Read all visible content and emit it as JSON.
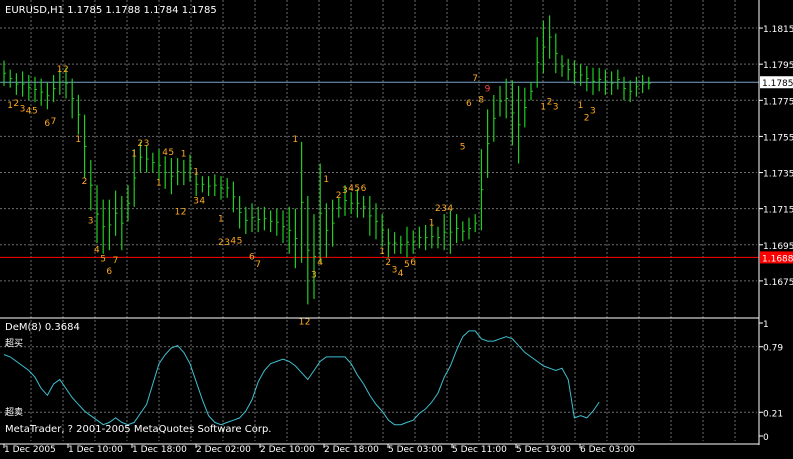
{
  "window": {
    "symbol_header": "EURUSD,H1  1.1785 1.1788 1.1784 1.1785",
    "background": "#000000",
    "grid_color": "#6b6b6b",
    "bull_color": "#22cc22",
    "label_color": "#ffaa22",
    "current_price_line_color": "#7aa2c8",
    "support_line_color": "#ff0000"
  },
  "price_chart": {
    "axis_ticks": [
      "1.1815",
      "1.1795",
      "1.1775",
      "1.1755",
      "1.1735",
      "1.1715",
      "1.1695",
      "1.1675"
    ],
    "current_price_label": "1.1785",
    "support_price_label": "1.1688",
    "ylim": [
      1.166,
      1.1825
    ]
  },
  "indicator": {
    "title": "DeM(8) 0.3684",
    "overbought_label": "超买",
    "oversold_label": "超卖",
    "axis_ticks": [
      "1",
      "0.79",
      "0.21",
      "0"
    ],
    "line_color": "#3fbfcf",
    "copyright": "MetaTrader, ? 2001-2005 MetaQuotes Software Corp."
  },
  "time_axis": {
    "labels": [
      "1 Dec 2005",
      "1 Dec 10:00",
      "1 Dec 18:00",
      "2 Dec 02:00",
      "2 Dec 10:00",
      "2 Dec 18:00",
      "5 Dec 03:00",
      "5 Dec 11:00",
      "5 Dec 19:00",
      "6 Dec 03:00"
    ]
  },
  "chart_data": {
    "type": "bar",
    "title": "EURUSD,H1",
    "ylim": [
      1.166,
      1.1825
    ],
    "grid": true,
    "bars": [
      {
        "h": 1.1797,
        "l": 1.1783
      },
      {
        "h": 1.1792,
        "l": 1.1782
      },
      {
        "h": 1.179,
        "l": 1.1778
      },
      {
        "h": 1.1791,
        "l": 1.1777
      },
      {
        "h": 1.1789,
        "l": 1.1775
      },
      {
        "h": 1.1788,
        "l": 1.1774
      },
      {
        "h": 1.1787,
        "l": 1.1772
      },
      {
        "h": 1.1785,
        "l": 1.177
      },
      {
        "h": 1.1789,
        "l": 1.1774
      },
      {
        "h": 1.1792,
        "l": 1.1778
      },
      {
        "h": 1.1793,
        "l": 1.1776
      },
      {
        "h": 1.1787,
        "l": 1.1765
      },
      {
        "h": 1.1778,
        "l": 1.1756
      },
      {
        "h": 1.1767,
        "l": 1.1732
      },
      {
        "h": 1.1742,
        "l": 1.1714
      },
      {
        "h": 1.1728,
        "l": 1.1696
      },
      {
        "h": 1.172,
        "l": 1.169
      },
      {
        "h": 1.172,
        "l": 1.1692
      },
      {
        "h": 1.1725,
        "l": 1.17
      },
      {
        "h": 1.1722,
        "l": 1.1692
      },
      {
        "h": 1.1728,
        "l": 1.1708
      },
      {
        "h": 1.1748,
        "l": 1.1716
      },
      {
        "h": 1.1752,
        "l": 1.1735
      },
      {
        "h": 1.175,
        "l": 1.1735
      },
      {
        "h": 1.1746,
        "l": 1.1735
      },
      {
        "h": 1.1748,
        "l": 1.173
      },
      {
        "h": 1.1744,
        "l": 1.1726
      },
      {
        "h": 1.1743,
        "l": 1.1723
      },
      {
        "h": 1.1743,
        "l": 1.1728
      },
      {
        "h": 1.1742,
        "l": 1.1728
      },
      {
        "h": 1.1745,
        "l": 1.173
      },
      {
        "h": 1.1735,
        "l": 1.1722
      },
      {
        "h": 1.1733,
        "l": 1.1724
      },
      {
        "h": 1.1733,
        "l": 1.1722
      },
      {
        "h": 1.1734,
        "l": 1.1722
      },
      {
        "h": 1.1733,
        "l": 1.172
      },
      {
        "h": 1.1732,
        "l": 1.1721
      },
      {
        "h": 1.173,
        "l": 1.1713
      },
      {
        "h": 1.1722,
        "l": 1.1704
      },
      {
        "h": 1.1716,
        "l": 1.1701
      },
      {
        "h": 1.1718,
        "l": 1.1702
      },
      {
        "h": 1.1716,
        "l": 1.1702
      },
      {
        "h": 1.1716,
        "l": 1.1703
      },
      {
        "h": 1.1714,
        "l": 1.1702
      },
      {
        "h": 1.1715,
        "l": 1.17
      },
      {
        "h": 1.1714,
        "l": 1.1696
      },
      {
        "h": 1.1716,
        "l": 1.169
      },
      {
        "h": 1.1715,
        "l": 1.1682
      },
      {
        "h": 1.1752,
        "l": 1.1685
      },
      {
        "h": 1.1722,
        "l": 1.1662
      },
      {
        "h": 1.1712,
        "l": 1.1665
      },
      {
        "h": 1.174,
        "l": 1.1685
      },
      {
        "h": 1.1718,
        "l": 1.1688
      },
      {
        "h": 1.172,
        "l": 1.1694
      },
      {
        "h": 1.1721,
        "l": 1.171
      },
      {
        "h": 1.1728,
        "l": 1.1711
      },
      {
        "h": 1.1724,
        "l": 1.1712
      },
      {
        "h": 1.1726,
        "l": 1.171
      },
      {
        "h": 1.1722,
        "l": 1.171
      },
      {
        "h": 1.1722,
        "l": 1.17
      },
      {
        "h": 1.1718,
        "l": 1.1698
      },
      {
        "h": 1.1712,
        "l": 1.1694
      },
      {
        "h": 1.1704,
        "l": 1.1688
      },
      {
        "h": 1.1702,
        "l": 1.169
      },
      {
        "h": 1.17,
        "l": 1.169
      },
      {
        "h": 1.1705,
        "l": 1.1688
      },
      {
        "h": 1.1703,
        "l": 1.169
      },
      {
        "h": 1.1705,
        "l": 1.1693
      },
      {
        "h": 1.1706,
        "l": 1.1692
      },
      {
        "h": 1.1706,
        "l": 1.1693
      },
      {
        "h": 1.1705,
        "l": 1.1693
      },
      {
        "h": 1.1712,
        "l": 1.1692
      },
      {
        "h": 1.1714,
        "l": 1.169
      },
      {
        "h": 1.1712,
        "l": 1.1696
      },
      {
        "h": 1.1708,
        "l": 1.1697
      },
      {
        "h": 1.171,
        "l": 1.1698
      },
      {
        "h": 1.1712,
        "l": 1.1702
      },
      {
        "h": 1.1748,
        "l": 1.1703
      },
      {
        "h": 1.177,
        "l": 1.1732
      },
      {
        "h": 1.1778,
        "l": 1.1752
      },
      {
        "h": 1.1783,
        "l": 1.1766
      },
      {
        "h": 1.1787,
        "l": 1.1765
      },
      {
        "h": 1.1786,
        "l": 1.175
      },
      {
        "h": 1.1783,
        "l": 1.174
      },
      {
        "h": 1.1782,
        "l": 1.176
      },
      {
        "h": 1.1785,
        "l": 1.1775
      },
      {
        "h": 1.181,
        "l": 1.1782
      },
      {
        "h": 1.1819,
        "l": 1.179
      },
      {
        "h": 1.1822,
        "l": 1.1798
      },
      {
        "h": 1.1812,
        "l": 1.179
      },
      {
        "h": 1.18,
        "l": 1.1788
      },
      {
        "h": 1.1798,
        "l": 1.1786
      },
      {
        "h": 1.1797,
        "l": 1.1784
      },
      {
        "h": 1.1795,
        "l": 1.1783
      },
      {
        "h": 1.1794,
        "l": 1.178
      },
      {
        "h": 1.1793,
        "l": 1.1778
      },
      {
        "h": 1.1793,
        "l": 1.178
      },
      {
        "h": 1.1792,
        "l": 1.1778
      },
      {
        "h": 1.1791,
        "l": 1.1778
      },
      {
        "h": 1.1792,
        "l": 1.1781
      },
      {
        "h": 1.1788,
        "l": 1.1775
      },
      {
        "h": 1.1786,
        "l": 1.1774
      },
      {
        "h": 1.1788,
        "l": 1.1777
      },
      {
        "h": 1.1789,
        "l": 1.1779
      },
      {
        "h": 1.1788,
        "l": 1.1781
      }
    ],
    "labels": [
      {
        "text": "1",
        "bar": 1,
        "price": 1.1773,
        "color": "#ffaa22"
      },
      {
        "text": "2",
        "bar": 2,
        "price": 1.1774,
        "color": "#ffaa22"
      },
      {
        "text": "3",
        "bar": 3,
        "price": 1.1771,
        "color": "#ffaa22"
      },
      {
        "text": "4",
        "bar": 4,
        "price": 1.177,
        "color": "#ffaa22"
      },
      {
        "text": "5",
        "bar": 5,
        "price": 1.177,
        "color": "#ffaa22"
      },
      {
        "text": "6",
        "bar": 7,
        "price": 1.1763,
        "color": "#ffaa22"
      },
      {
        "text": "7",
        "bar": 8,
        "price": 1.1764,
        "color": "#ffaa22"
      },
      {
        "text": "1",
        "bar": 9,
        "price": 1.1793,
        "color": "#ffaa22"
      },
      {
        "text": "2",
        "bar": 10,
        "price": 1.1793,
        "color": "#ffaa22"
      },
      {
        "text": "1",
        "bar": 12,
        "price": 1.1754,
        "color": "#ffaa22"
      },
      {
        "text": "2",
        "bar": 13,
        "price": 1.1731,
        "color": "#ffaa22"
      },
      {
        "text": "3",
        "bar": 14,
        "price": 1.1709,
        "color": "#ffaa22"
      },
      {
        "text": "4",
        "bar": 15,
        "price": 1.1693,
        "color": "#ffaa22"
      },
      {
        "text": "5",
        "bar": 16,
        "price": 1.1688,
        "color": "#ffaa22"
      },
      {
        "text": "6",
        "bar": 17,
        "price": 1.1681,
        "color": "#ffaa22"
      },
      {
        "text": "7",
        "bar": 18,
        "price": 1.1687,
        "color": "#ffaa22"
      },
      {
        "text": "1",
        "bar": 21,
        "price": 1.1746,
        "color": "#ffaa22"
      },
      {
        "text": "2",
        "bar": 22,
        "price": 1.1752,
        "color": "#ffaa22"
      },
      {
        "text": "3",
        "bar": 23,
        "price": 1.1752,
        "color": "#ffaa22"
      },
      {
        "text": "1",
        "bar": 25,
        "price": 1.173,
        "color": "#ffaa22"
      },
      {
        "text": "4",
        "bar": 26,
        "price": 1.1747,
        "color": "#ffaa22"
      },
      {
        "text": "5",
        "bar": 27,
        "price": 1.1747,
        "color": "#ffaa22"
      },
      {
        "text": "1",
        "bar": 29,
        "price": 1.1746,
        "color": "#ffaa22"
      },
      {
        "text": "1",
        "bar": 31,
        "price": 1.1736,
        "color": "#ffaa22"
      },
      {
        "text": "1",
        "bar": 28,
        "price": 1.1714,
        "color": "#ffaa22"
      },
      {
        "text": "2",
        "bar": 29,
        "price": 1.1714,
        "color": "#ffaa22"
      },
      {
        "text": "3",
        "bar": 31,
        "price": 1.172,
        "color": "#ffaa22"
      },
      {
        "text": "4",
        "bar": 32,
        "price": 1.172,
        "color": "#ffaa22"
      },
      {
        "text": "1",
        "bar": 35,
        "price": 1.171,
        "color": "#ffaa22"
      },
      {
        "text": "2",
        "bar": 35,
        "price": 1.1697,
        "color": "#ffaa22"
      },
      {
        "text": "3",
        "bar": 36,
        "price": 1.1697,
        "color": "#ffaa22"
      },
      {
        "text": "4",
        "bar": 37,
        "price": 1.1698,
        "color": "#ffaa22"
      },
      {
        "text": "5",
        "bar": 38,
        "price": 1.1698,
        "color": "#ffaa22"
      },
      {
        "text": "6",
        "bar": 40,
        "price": 1.1689,
        "color": "#ffaa22"
      },
      {
        "text": "7",
        "bar": 41,
        "price": 1.1685,
        "color": "#ffaa22"
      },
      {
        "text": "1",
        "bar": 47,
        "price": 1.1754,
        "color": "#ffaa22"
      },
      {
        "text": "1",
        "bar": 48,
        "price": 1.1653,
        "color": "#ffaa22"
      },
      {
        "text": "2",
        "bar": 49,
        "price": 1.1653,
        "color": "#ffaa22"
      },
      {
        "text": "3",
        "bar": 50,
        "price": 1.1679,
        "color": "#ffaa22"
      },
      {
        "text": "4",
        "bar": 51,
        "price": 1.1686,
        "color": "#ffaa22"
      },
      {
        "text": "1",
        "bar": 52,
        "price": 1.1732,
        "color": "#ffaa22"
      },
      {
        "text": "2",
        "bar": 54,
        "price": 1.1723,
        "color": "#ffaa22"
      },
      {
        "text": "3",
        "bar": 55,
        "price": 1.1726,
        "color": "#ffaa22"
      },
      {
        "text": "4",
        "bar": 56,
        "price": 1.1727,
        "color": "#ffaa22"
      },
      {
        "text": "5",
        "bar": 57,
        "price": 1.1727,
        "color": "#ffaa22"
      },
      {
        "text": "6",
        "bar": 58,
        "price": 1.1727,
        "color": "#ffaa22"
      },
      {
        "text": "1",
        "bar": 61,
        "price": 1.1692,
        "color": "#ffaa22"
      },
      {
        "text": "2",
        "bar": 62,
        "price": 1.1686,
        "color": "#ffaa22"
      },
      {
        "text": "3",
        "bar": 63,
        "price": 1.1682,
        "color": "#ffaa22"
      },
      {
        "text": "4",
        "bar": 64,
        "price": 1.168,
        "color": "#ffaa22"
      },
      {
        "text": "5",
        "bar": 65,
        "price": 1.1685,
        "color": "#ffaa22"
      },
      {
        "text": "6",
        "bar": 66,
        "price": 1.1686,
        "color": "#ffaa22"
      },
      {
        "text": "1",
        "bar": 69,
        "price": 1.1708,
        "color": "#ffaa22"
      },
      {
        "text": "2",
        "bar": 70,
        "price": 1.1716,
        "color": "#ffaa22"
      },
      {
        "text": "3",
        "bar": 71,
        "price": 1.1716,
        "color": "#ffaa22"
      },
      {
        "text": "4",
        "bar": 72,
        "price": 1.1716,
        "color": "#ffaa22"
      },
      {
        "text": "5",
        "bar": 74,
        "price": 1.175,
        "color": "#ffaa22"
      },
      {
        "text": "6",
        "bar": 75,
        "price": 1.1774,
        "color": "#ffaa22"
      },
      {
        "text": "7",
        "bar": 76,
        "price": 1.1788,
        "color": "#ffaa22"
      },
      {
        "text": "8",
        "bar": 77,
        "price": 1.1776,
        "color": "#ffaa22"
      },
      {
        "text": "9",
        "bar": 78,
        "price": 1.1782,
        "color": "#ff4444"
      },
      {
        "text": "1",
        "bar": 87,
        "price": 1.1772,
        "color": "#ffaa22"
      },
      {
        "text": "2",
        "bar": 88,
        "price": 1.1775,
        "color": "#ffaa22"
      },
      {
        "text": "3",
        "bar": 89,
        "price": 1.1772,
        "color": "#ffaa22"
      },
      {
        "text": "1",
        "bar": 93,
        "price": 1.1773,
        "color": "#ffaa22"
      },
      {
        "text": "2",
        "bar": 94,
        "price": 1.1766,
        "color": "#ffaa22"
      },
      {
        "text": "3",
        "bar": 95,
        "price": 1.177,
        "color": "#ffaa22"
      }
    ],
    "dem_values": [
      0.72,
      0.7,
      0.66,
      0.62,
      0.58,
      0.52,
      0.42,
      0.36,
      0.46,
      0.5,
      0.42,
      0.34,
      0.28,
      0.22,
      0.18,
      0.14,
      0.1,
      0.12,
      0.16,
      0.12,
      0.1,
      0.12,
      0.2,
      0.28,
      0.46,
      0.64,
      0.72,
      0.78,
      0.8,
      0.74,
      0.64,
      0.48,
      0.32,
      0.18,
      0.12,
      0.1,
      0.12,
      0.14,
      0.16,
      0.22,
      0.32,
      0.48,
      0.58,
      0.64,
      0.66,
      0.68,
      0.66,
      0.62,
      0.56,
      0.5,
      0.58,
      0.66,
      0.7,
      0.7,
      0.7,
      0.7,
      0.64,
      0.54,
      0.46,
      0.36,
      0.28,
      0.22,
      0.14,
      0.1,
      0.1,
      0.12,
      0.14,
      0.2,
      0.24,
      0.3,
      0.38,
      0.52,
      0.62,
      0.76,
      0.88,
      0.93,
      0.93,
      0.86,
      0.84,
      0.84,
      0.86,
      0.88,
      0.86,
      0.8,
      0.74,
      0.7,
      0.66,
      0.62,
      0.6,
      0.58,
      0.6,
      0.5,
      0.16,
      0.18,
      0.16,
      0.22,
      0.3
    ],
    "dem_xlim": [
      0,
      96
    ],
    "dem_ylim": [
      0,
      1
    ]
  }
}
